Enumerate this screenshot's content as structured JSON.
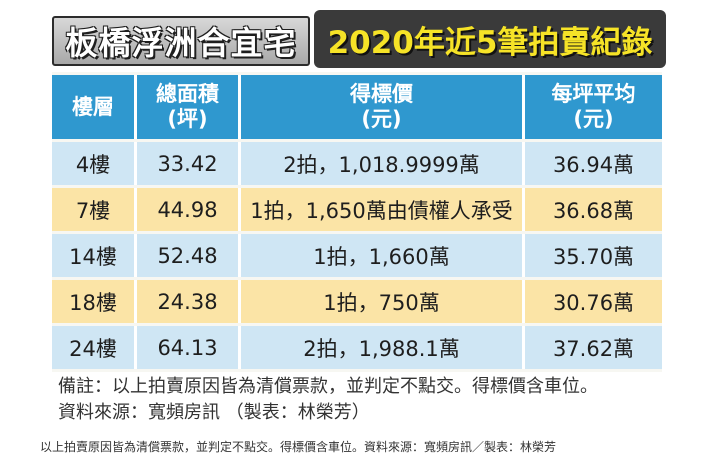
{
  "title": {
    "part1": "板橋浮洲合宜宅",
    "part2": "2020年近5筆拍賣紀錄"
  },
  "chart_data": {
    "type": "table",
    "columns": [
      "樓層",
      "總面積\n(坪)",
      "得標價\n(元)",
      "每坪平均\n(元)"
    ],
    "rows": [
      {
        "floor": "4樓",
        "area": "33.42",
        "price": "2拍，1,018.9999萬",
        "avg": "36.94萬"
      },
      {
        "floor": "7樓",
        "area": "44.98",
        "price": "1拍，1,650萬由債權人承受",
        "avg": "36.68萬"
      },
      {
        "floor": "14樓",
        "area": "52.48",
        "price": "1拍，1,660萬",
        "avg": "35.70萬"
      },
      {
        "floor": "18樓",
        "area": "24.38",
        "price": "1拍，750萬",
        "avg": "30.76萬"
      },
      {
        "floor": "24樓",
        "area": "64.13",
        "price": "2拍，1,988.1萬",
        "avg": "37.62萬"
      }
    ]
  },
  "notes": {
    "line1": "備註：以上拍賣原因皆為清償票款，並判定不點交。得標價含車位。",
    "line2": "資料來源：寬頻房訊 （製表：林榮芳）"
  },
  "caption": "以上拍賣原因皆為清償票款，並判定不點交。得標價含車位。資料來源：寬頻房訊／製表：林榮芳",
  "colors": {
    "header": "#2f98cf",
    "row_blue": "#cfe6f4",
    "row_yellow": "#fbe4a6",
    "title_yellow": "#f6e327"
  }
}
